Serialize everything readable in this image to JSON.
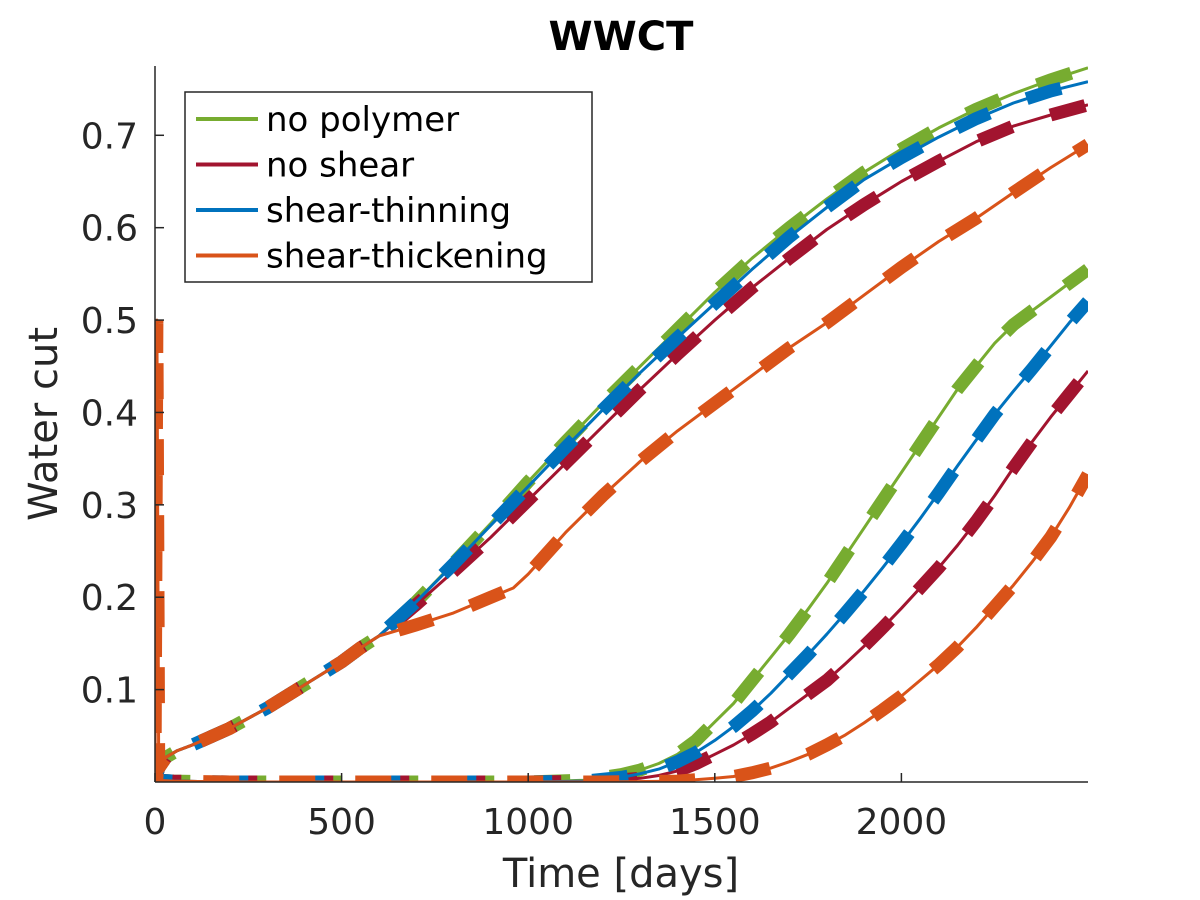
{
  "chart_data": {
    "type": "line",
    "title": "WWCT",
    "xlabel": "Time [days]",
    "ylabel": "Water cut",
    "xlim": [
      0,
      2500
    ],
    "ylim": [
      0,
      0.775
    ],
    "xticks": [
      0,
      500,
      1000,
      1500,
      2000
    ],
    "xtick_labels": [
      "0",
      "500",
      "1000",
      "1500",
      "2000"
    ],
    "yticks": [
      0.1,
      0.2,
      0.3,
      0.4,
      0.5,
      0.6,
      0.7
    ],
    "ytick_labels": [
      "0.1",
      "0.2",
      "0.3",
      "0.4",
      "0.5",
      "0.6",
      "0.7"
    ],
    "grid": false,
    "legend_position": "top-left",
    "series": [
      {
        "name": "no polymer",
        "color": "#77AC30",
        "well_a": {
          "x": [
            0,
            10,
            30,
            60,
            100,
            200,
            300,
            400,
            500,
            550,
            600,
            700,
            800,
            900,
            1000,
            1100,
            1200,
            1300,
            1400,
            1500,
            1600,
            1700,
            1800,
            1900,
            2000,
            2100,
            2200,
            2300,
            2400,
            2500
          ],
          "y": [
            0,
            0.015,
            0.027,
            0.034,
            0.04,
            0.058,
            0.08,
            0.105,
            0.13,
            0.145,
            0.158,
            0.195,
            0.237,
            0.28,
            0.325,
            0.368,
            0.41,
            0.45,
            0.49,
            0.53,
            0.567,
            0.6,
            0.631,
            0.66,
            0.685,
            0.708,
            0.728,
            0.745,
            0.76,
            0.773
          ]
        },
        "well_b": {
          "x": [
            0,
            5,
            50,
            200,
            500,
            800,
            1000,
            1150,
            1250,
            1300,
            1350,
            1400,
            1450,
            1500,
            1550,
            1600,
            1650,
            1700,
            1750,
            1800,
            1850,
            1900,
            1950,
            2000,
            2050,
            2100,
            2150,
            2200,
            2250,
            2300,
            2350,
            2400,
            2450,
            2500
          ],
          "y": [
            0,
            0.002,
            0.001,
            0,
            0,
            0,
            0,
            0.002,
            0.008,
            0.013,
            0.02,
            0.03,
            0.045,
            0.065,
            0.085,
            0.11,
            0.135,
            0.16,
            0.187,
            0.215,
            0.245,
            0.275,
            0.305,
            0.335,
            0.365,
            0.395,
            0.425,
            0.45,
            0.475,
            0.495,
            0.51,
            0.525,
            0.54,
            0.555
          ]
        }
      },
      {
        "name": "no shear",
        "color": "#A2142F",
        "well_a": {
          "x": [
            0,
            10,
            30,
            60,
            100,
            200,
            300,
            400,
            500,
            550,
            600,
            700,
            800,
            900,
            1000,
            1100,
            1200,
            1300,
            1400,
            1500,
            1600,
            1700,
            1800,
            1900,
            2000,
            2100,
            2200,
            2300,
            2400,
            2500
          ],
          "y": [
            0,
            0.015,
            0.027,
            0.034,
            0.04,
            0.058,
            0.08,
            0.105,
            0.13,
            0.145,
            0.158,
            0.192,
            0.228,
            0.265,
            0.305,
            0.345,
            0.385,
            0.425,
            0.463,
            0.5,
            0.535,
            0.567,
            0.598,
            0.625,
            0.65,
            0.672,
            0.693,
            0.71,
            0.722,
            0.733
          ]
        },
        "well_b": {
          "x": [
            0,
            5,
            50,
            200,
            500,
            800,
            1000,
            1200,
            1300,
            1350,
            1400,
            1450,
            1500,
            1550,
            1600,
            1650,
            1700,
            1750,
            1800,
            1850,
            1900,
            1950,
            2000,
            2050,
            2100,
            2150,
            2200,
            2250,
            2300,
            2350,
            2400,
            2450,
            2500
          ],
          "y": [
            0,
            0.002,
            0.001,
            0,
            0,
            0,
            0,
            0.001,
            0.004,
            0.007,
            0.012,
            0.02,
            0.03,
            0.04,
            0.052,
            0.065,
            0.08,
            0.095,
            0.11,
            0.128,
            0.147,
            0.167,
            0.188,
            0.21,
            0.232,
            0.256,
            0.282,
            0.31,
            0.34,
            0.368,
            0.395,
            0.42,
            0.445
          ]
        }
      },
      {
        "name": "shear-thinning",
        "color": "#0072BD",
        "well_a": {
          "x": [
            0,
            10,
            30,
            60,
            100,
            200,
            300,
            400,
            500,
            550,
            600,
            700,
            800,
            900,
            1000,
            1100,
            1200,
            1300,
            1400,
            1500,
            1600,
            1700,
            1800,
            1900,
            2000,
            2100,
            2200,
            2300,
            2400,
            2500
          ],
          "y": [
            0,
            0.015,
            0.027,
            0.034,
            0.04,
            0.058,
            0.08,
            0.105,
            0.13,
            0.145,
            0.158,
            0.195,
            0.236,
            0.278,
            0.32,
            0.362,
            0.403,
            0.443,
            0.481,
            0.518,
            0.555,
            0.59,
            0.622,
            0.652,
            0.676,
            0.698,
            0.718,
            0.735,
            0.748,
            0.758
          ]
        },
        "well_b": {
          "x": [
            0,
            5,
            50,
            200,
            500,
            800,
            1000,
            1150,
            1250,
            1300,
            1350,
            1400,
            1450,
            1500,
            1550,
            1600,
            1650,
            1700,
            1750,
            1800,
            1850,
            1900,
            1950,
            2000,
            2050,
            2100,
            2150,
            2200,
            2250,
            2300,
            2350,
            2400,
            2450,
            2500
          ],
          "y": [
            0,
            0.002,
            0.001,
            0,
            0,
            0,
            0,
            0.001,
            0.005,
            0.009,
            0.014,
            0.022,
            0.032,
            0.045,
            0.06,
            0.077,
            0.096,
            0.117,
            0.138,
            0.16,
            0.183,
            0.207,
            0.232,
            0.258,
            0.285,
            0.313,
            0.342,
            0.37,
            0.398,
            0.423,
            0.447,
            0.472,
            0.497,
            0.52
          ]
        }
      },
      {
        "name": "shear-thickening",
        "color": "#D95319",
        "well_a": {
          "x": [
            0,
            5,
            10,
            30,
            60,
            100,
            200,
            300,
            400,
            500,
            550,
            600,
            700,
            800,
            900,
            960,
            1000,
            1100,
            1200,
            1300,
            1400,
            1500,
            1600,
            1700,
            1800,
            1900,
            2000,
            2100,
            2200,
            2300,
            2400,
            2500
          ],
          "y": [
            0,
            0.5,
            0.015,
            0.027,
            0.034,
            0.04,
            0.058,
            0.08,
            0.105,
            0.13,
            0.145,
            0.158,
            0.17,
            0.183,
            0.2,
            0.21,
            0.225,
            0.27,
            0.31,
            0.347,
            0.38,
            0.41,
            0.44,
            0.47,
            0.497,
            0.527,
            0.557,
            0.585,
            0.61,
            0.638,
            0.665,
            0.69
          ]
        },
        "well_b": {
          "x": [
            0,
            5,
            50,
            200,
            500,
            800,
            1000,
            1200,
            1400,
            1500,
            1550,
            1600,
            1650,
            1700,
            1750,
            1800,
            1850,
            1900,
            1950,
            2000,
            2050,
            2100,
            2150,
            2200,
            2250,
            2300,
            2350,
            2400,
            2450,
            2500
          ],
          "y": [
            0,
            0.002,
            0.001,
            0,
            0,
            0,
            0,
            0,
            0.001,
            0.004,
            0.006,
            0.01,
            0.015,
            0.022,
            0.03,
            0.04,
            0.051,
            0.064,
            0.078,
            0.093,
            0.11,
            0.127,
            0.146,
            0.167,
            0.19,
            0.213,
            0.238,
            0.265,
            0.297,
            0.333
          ]
        }
      }
    ]
  }
}
